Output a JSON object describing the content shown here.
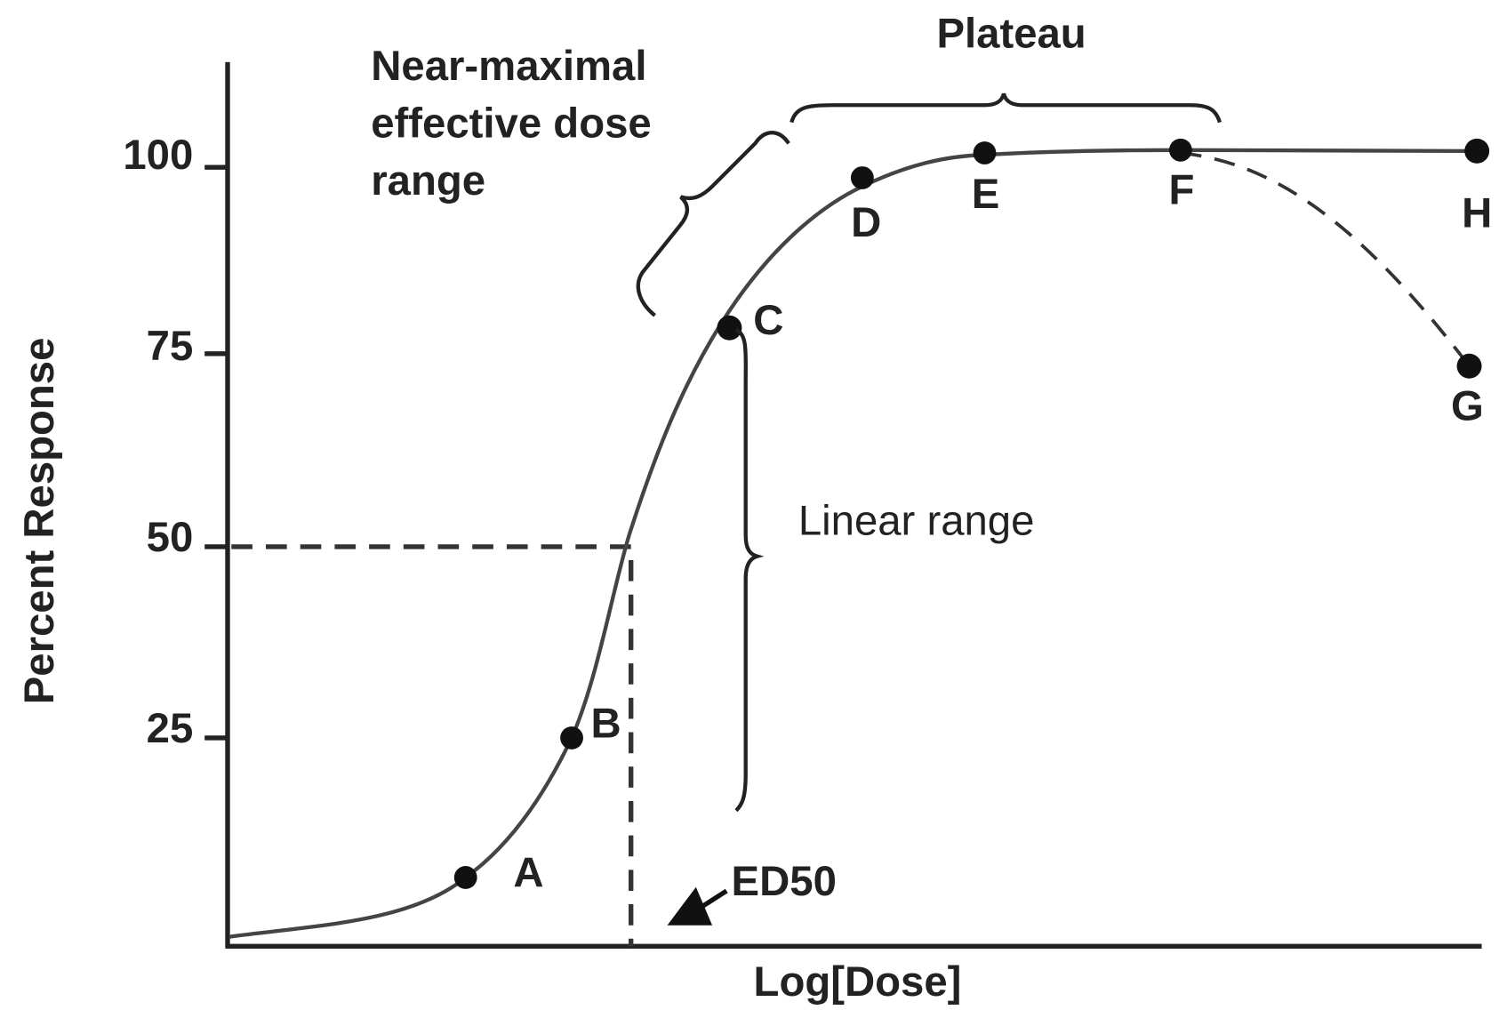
{
  "y_axis": {
    "label": "Percent Response",
    "ticks": [
      25,
      50,
      75,
      100
    ]
  },
  "x_axis": {
    "label": "Log[Dose]"
  },
  "points": [
    "A",
    "B",
    "C",
    "D",
    "E",
    "F",
    "H",
    "G"
  ],
  "annotations": {
    "ed50": "ED50",
    "linear_range": "Linear range",
    "plateau": "Plateau",
    "near_maximal": [
      "Near-maximal",
      "effective dose",
      "range"
    ]
  }
}
